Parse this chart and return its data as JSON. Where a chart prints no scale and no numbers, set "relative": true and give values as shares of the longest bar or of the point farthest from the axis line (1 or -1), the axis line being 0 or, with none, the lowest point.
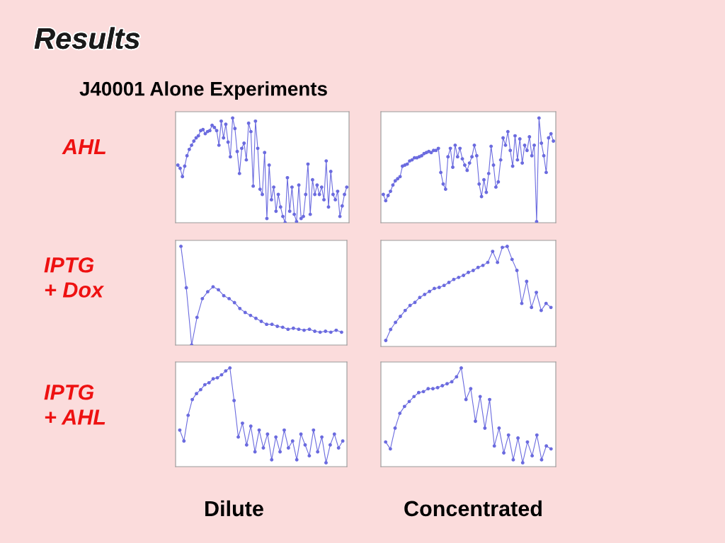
{
  "chart_data": [
    {
      "type": "other",
      "annotations": [
        "Results",
        "J40001 Alone Experiments",
        "AHL",
        "IPTG\n+ Dox",
        "IPTG\n+ AHL",
        "Dilute",
        "Concentrated"
      ]
    },
    {
      "type": "line",
      "relative": true,
      "tick_labels": false,
      "marker": "circle",
      "categories": [
        null,
        null,
        null,
        null,
        null,
        null,
        null,
        null,
        null,
        null,
        null,
        null,
        null,
        null,
        null,
        null,
        null,
        null,
        null,
        null,
        null,
        null,
        null,
        null,
        null,
        null,
        null,
        null,
        null,
        null,
        null,
        null,
        null,
        null,
        null,
        null,
        null,
        null,
        null,
        null,
        null,
        null,
        null,
        null,
        null,
        null,
        null,
        null,
        null,
        null,
        null,
        null,
        null,
        null,
        null,
        null,
        null,
        null,
        null,
        null,
        null,
        null,
        null,
        null,
        null,
        null,
        null,
        null,
        null,
        null,
        null,
        null,
        null,
        null,
        null
      ],
      "series": [
        {
          "color": "#6b6bdf",
          "values": [
            0.55,
            0.52,
            0.44,
            0.54,
            0.64,
            0.7,
            0.74,
            0.78,
            0.81,
            0.83,
            0.88,
            0.89,
            0.85,
            0.87,
            0.88,
            0.93,
            0.91,
            0.88,
            0.74,
            0.97,
            0.81,
            0.94,
            0.77,
            0.63,
            1.0,
            0.9,
            0.68,
            0.47,
            0.71,
            0.76,
            0.6,
            0.95,
            0.87,
            0.35,
            0.97,
            0.71,
            0.32,
            0.27,
            0.67,
            0.04,
            0.55,
            0.22,
            0.34,
            0.11,
            0.27,
            0.15,
            0.06,
            0.0,
            0.43,
            0.11,
            0.34,
            0.08,
            0.01,
            0.36,
            0.04,
            0.06,
            0.27,
            0.56,
            0.08,
            0.41,
            0.27,
            0.36,
            0.27,
            0.34,
            0.22,
            0.59,
            0.15,
            0.49,
            0.27,
            0.22,
            0.3,
            0.06,
            0.16,
            0.27,
            0.34
          ]
        }
      ]
    },
    {
      "type": "line",
      "relative": true,
      "tick_labels": false,
      "marker": "circle",
      "categories": [
        null,
        null,
        null,
        null,
        null,
        null,
        null,
        null,
        null,
        null,
        null,
        null,
        null,
        null,
        null,
        null,
        null,
        null,
        null,
        null,
        null,
        null,
        null,
        null,
        null,
        null,
        null,
        null,
        null,
        null,
        null,
        null,
        null,
        null,
        null,
        null,
        null,
        null,
        null,
        null,
        null,
        null,
        null,
        null,
        null,
        null,
        null,
        null,
        null,
        null,
        null,
        null,
        null,
        null,
        null,
        null,
        null,
        null,
        null,
        null,
        null,
        null,
        null,
        null,
        null,
        null,
        null,
        null,
        null,
        null,
        null,
        null
      ],
      "series": [
        {
          "color": "#6b6bdf",
          "values": [
            0.27,
            0.21,
            0.26,
            0.3,
            0.36,
            0.4,
            0.42,
            0.44,
            0.54,
            0.55,
            0.56,
            0.59,
            0.6,
            0.62,
            0.62,
            0.63,
            0.64,
            0.66,
            0.67,
            0.68,
            0.67,
            0.69,
            0.69,
            0.71,
            0.48,
            0.37,
            0.32,
            0.63,
            0.71,
            0.53,
            0.74,
            0.63,
            0.71,
            0.61,
            0.55,
            0.5,
            0.57,
            0.63,
            0.74,
            0.64,
            0.37,
            0.25,
            0.41,
            0.29,
            0.47,
            0.73,
            0.55,
            0.34,
            0.39,
            0.6,
            0.81,
            0.74,
            0.87,
            0.69,
            0.54,
            0.83,
            0.6,
            0.8,
            0.57,
            0.74,
            0.69,
            0.82,
            0.64,
            0.74,
            0.01,
            1.0,
            0.76,
            0.64,
            0.48,
            0.81,
            0.85,
            0.78
          ]
        }
      ]
    },
    {
      "type": "line",
      "relative": true,
      "tick_labels": false,
      "marker": "circle",
      "categories": [
        null,
        null,
        null,
        null,
        null,
        null,
        null,
        null,
        null,
        null,
        null,
        null,
        null,
        null,
        null,
        null,
        null,
        null,
        null,
        null,
        null,
        null,
        null,
        null,
        null,
        null,
        null,
        null,
        null,
        null,
        null
      ],
      "series": [
        {
          "color": "#6b6bdf",
          "values": [
            1.0,
            0.58,
            0.0,
            0.28,
            0.47,
            0.54,
            0.59,
            0.56,
            0.5,
            0.47,
            0.43,
            0.37,
            0.33,
            0.3,
            0.27,
            0.24,
            0.21,
            0.21,
            0.19,
            0.18,
            0.16,
            0.17,
            0.16,
            0.15,
            0.16,
            0.14,
            0.13,
            0.14,
            0.13,
            0.15,
            0.13
          ]
        }
      ]
    },
    {
      "type": "line",
      "relative": true,
      "tick_labels": false,
      "marker": "circle",
      "categories": [
        null,
        null,
        null,
        null,
        null,
        null,
        null,
        null,
        null,
        null,
        null,
        null,
        null,
        null,
        null,
        null,
        null,
        null,
        null,
        null,
        null,
        null,
        null,
        null,
        null,
        null,
        null,
        null,
        null,
        null,
        null,
        null,
        null,
        null,
        null
      ],
      "series": [
        {
          "color": "#6b6bdf",
          "values": [
            0.06,
            0.17,
            0.24,
            0.3,
            0.36,
            0.41,
            0.44,
            0.49,
            0.52,
            0.55,
            0.58,
            0.59,
            0.61,
            0.64,
            0.67,
            0.69,
            0.71,
            0.74,
            0.76,
            0.79,
            0.81,
            0.84,
            0.95,
            0.84,
            0.99,
            1.0,
            0.87,
            0.76,
            0.43,
            0.65,
            0.39,
            0.54,
            0.36,
            0.43,
            0.39
          ]
        }
      ]
    },
    {
      "type": "line",
      "relative": true,
      "tick_labels": false,
      "marker": "circle",
      "categories": [
        null,
        null,
        null,
        null,
        null,
        null,
        null,
        null,
        null,
        null,
        null,
        null,
        null,
        null,
        null,
        null,
        null,
        null,
        null,
        null,
        null,
        null,
        null,
        null,
        null,
        null,
        null,
        null,
        null,
        null,
        null,
        null,
        null,
        null,
        null,
        null,
        null,
        null,
        null,
        null
      ],
      "series": [
        {
          "color": "#6b6bdf",
          "values": [
            0.37,
            0.26,
            0.52,
            0.68,
            0.74,
            0.78,
            0.83,
            0.85,
            0.89,
            0.9,
            0.93,
            0.97,
            1.0,
            0.67,
            0.3,
            0.44,
            0.22,
            0.41,
            0.15,
            0.37,
            0.19,
            0.33,
            0.07,
            0.3,
            0.15,
            0.37,
            0.19,
            0.26,
            0.07,
            0.33,
            0.22,
            0.11,
            0.37,
            0.15,
            0.3,
            0.04,
            0.22,
            0.33,
            0.19,
            0.26
          ]
        }
      ]
    },
    {
      "type": "line",
      "relative": true,
      "tick_labels": false,
      "marker": "circle",
      "categories": [
        null,
        null,
        null,
        null,
        null,
        null,
        null,
        null,
        null,
        null,
        null,
        null,
        null,
        null,
        null,
        null,
        null,
        null,
        null,
        null,
        null,
        null,
        null,
        null,
        null,
        null,
        null,
        null,
        null,
        null,
        null,
        null,
        null,
        null,
        null,
        null
      ],
      "series": [
        {
          "color": "#6b6bdf",
          "values": [
            0.25,
            0.18,
            0.39,
            0.54,
            0.61,
            0.66,
            0.71,
            0.75,
            0.76,
            0.79,
            0.79,
            0.8,
            0.82,
            0.84,
            0.86,
            0.91,
            1.0,
            0.68,
            0.79,
            0.46,
            0.71,
            0.39,
            0.68,
            0.21,
            0.39,
            0.14,
            0.32,
            0.07,
            0.29,
            0.04,
            0.25,
            0.11,
            0.32,
            0.07,
            0.21,
            0.18
          ]
        }
      ]
    }
  ]
}
